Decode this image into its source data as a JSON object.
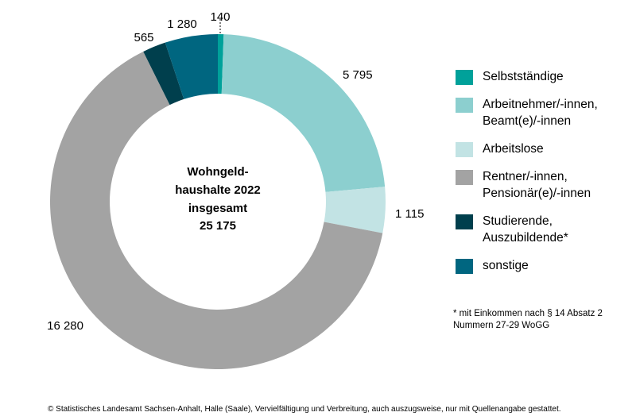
{
  "chart_data": {
    "type": "pie",
    "title": "",
    "center_title": [
      "Wohngeld-",
      "haushalte 2022",
      "insgesamt",
      "25 175"
    ],
    "slices": [
      {
        "name": "Selbstständige",
        "value": 140,
        "label": "140",
        "color": "#00a19a"
      },
      {
        "name": "Arbeitnehmer/-innen,\nBeamt(e)/-innen",
        "value": 5795,
        "label": "5 795",
        "color": "#8ccfcf"
      },
      {
        "name": "Arbeitslose",
        "value": 1115,
        "label": "1 115",
        "color": "#c2e3e4"
      },
      {
        "name": "Rentner/-innen,\nPensionär(e)/-innen",
        "value": 16280,
        "label": "16 280",
        "color": "#a3a3a3"
      },
      {
        "name": "Studierende,\nAuszubildende*",
        "value": 565,
        "label": "565",
        "color": "#003f4d"
      },
      {
        "name": "sonstige",
        "value": 1280,
        "label": "1 280",
        "color": "#006680"
      }
    ],
    "legend_position": "right"
  },
  "footnote": "* mit Einkommen nach § 14 Absatz 2\nNummern 27-29 WoGG",
  "copyright": "© Statistisches Landesamt Sachsen-Anhalt, Halle (Saale), Vervielfältigung und Verbreitung, auch auszugsweise, nur mit Quellenangabe gestattet."
}
